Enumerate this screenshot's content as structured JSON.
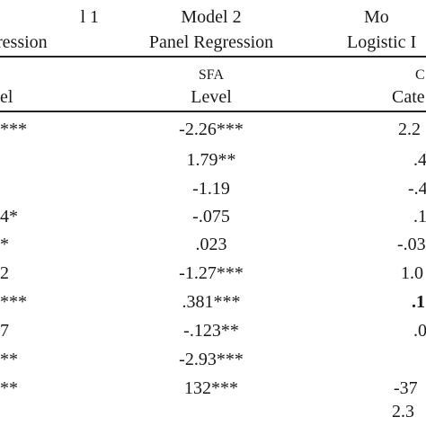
{
  "header": {
    "col1_model": "l 1",
    "col1_type": "ression",
    "col2_model": "Model 2",
    "col2_type": "Panel Regression",
    "col3_model": "Mo",
    "col3_type": "Logistic I"
  },
  "subheader": {
    "col1_var": "",
    "col1_level": "el",
    "col2_var": "SFA",
    "col2_level": "Level",
    "col3_var": "C",
    "col3_level": "Cate"
  },
  "rows": [
    {
      "left": "***",
      "mid": "-2.26***",
      "right": "2.2"
    },
    {
      "left": "",
      "mid": "1.79**",
      "right": ".4"
    },
    {
      "left": "",
      "mid": "-1.19",
      "right": "-.4"
    },
    {
      "left": "4*",
      "mid": "-.075",
      "right": ".1"
    },
    {
      "left": "*",
      "mid": ".023",
      "right": "-.03"
    },
    {
      "left": "2",
      "mid": "-1.27***",
      "right": "1.0"
    },
    {
      "left": "***",
      "mid": ".381***",
      "right": ".1"
    },
    {
      "left": "7",
      "mid": "-.123**",
      "right": ".0"
    },
    {
      "left": "**",
      "mid": "-2.93***",
      "right": ""
    },
    {
      "left": "**",
      "mid": "132***",
      "right": "-37"
    },
    {
      "left": "",
      "mid": "",
      "right": "2.3"
    }
  ]
}
